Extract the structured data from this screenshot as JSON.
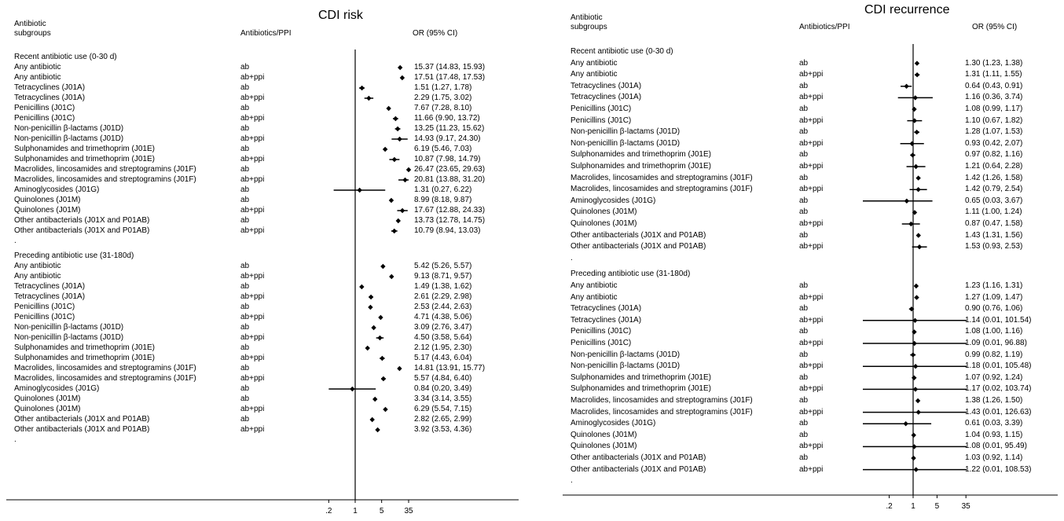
{
  "headers": {
    "subgroup_label": [
      "Antibiotic",
      "subgroups"
    ],
    "exposure_label": "Antibiotics/PPI",
    "or_label": "OR (95% CI)"
  },
  "chart_data": [
    {
      "type": "forest",
      "title": "CDI risk",
      "x_scale": "log",
      "reference_line": 1,
      "x_ticks": [
        {
          "value": 0.2,
          "label": ".2"
        },
        {
          "value": 1,
          "label": "1"
        },
        {
          "value": 5,
          "label": "5"
        },
        {
          "value": 35,
          "label": "35"
        }
      ],
      "groups": [
        {
          "label": "Recent antibiotic use (0-30 d)",
          "rows": [
            {
              "label": "Any antibiotic",
              "exposure": "ab",
              "or": 15.37,
              "lo": 14.83,
              "hi": 15.93,
              "text": "15.37 (14.83, 15.93)"
            },
            {
              "label": "Any antibiotic",
              "exposure": "ab+ppi",
              "or": 17.51,
              "lo": 17.48,
              "hi": 17.53,
              "text": "17.51 (17.48, 17.53)"
            },
            {
              "label": "Tetracyclines (J01A)",
              "exposure": "ab",
              "or": 1.51,
              "lo": 1.27,
              "hi": 1.78,
              "text": "1.51 (1.27, 1.78)"
            },
            {
              "label": "Tetracyclines (J01A)",
              "exposure": "ab+ppi",
              "or": 2.29,
              "lo": 1.75,
              "hi": 3.02,
              "text": "2.29 (1.75, 3.02)"
            },
            {
              "label": "Penicillins (J01C)",
              "exposure": "ab",
              "or": 7.67,
              "lo": 7.28,
              "hi": 8.1,
              "text": "7.67 (7.28, 8.10)"
            },
            {
              "label": "Penicillins (J01C)",
              "exposure": "ab+ppi",
              "or": 11.66,
              "lo": 9.9,
              "hi": 13.72,
              "text": "11.66 (9.90, 13.72)"
            },
            {
              "label": "Non-penicillin β-lactams (J01D)",
              "exposure": "ab",
              "or": 13.25,
              "lo": 11.23,
              "hi": 15.62,
              "text": "13.25 (11.23, 15.62)"
            },
            {
              "label": "Non-penicillin β-lactams (J01D)",
              "exposure": "ab+ppi",
              "or": 14.93,
              "lo": 9.17,
              "hi": 24.3,
              "text": "14.93 (9.17, 24.30)"
            },
            {
              "label": "Sulphonamides and trimethoprim  (J01E)",
              "exposure": "ab",
              "or": 6.19,
              "lo": 5.46,
              "hi": 7.03,
              "text": "6.19 (5.46, 7.03)"
            },
            {
              "label": "Sulphonamides and trimethoprim  (J01E)",
              "exposure": "ab+ppi",
              "or": 10.87,
              "lo": 7.98,
              "hi": 14.79,
              "text": "10.87 (7.98, 14.79)"
            },
            {
              "label": "Macrolides, lincosamides and streptogramins (J01F)",
              "exposure": "ab",
              "or": 26.47,
              "lo": 23.65,
              "hi": 29.63,
              "text": "26.47 (23.65, 29.63)"
            },
            {
              "label": "Macrolides, lincosamides and streptogramins (J01F)",
              "exposure": "ab+ppi",
              "or": 20.81,
              "lo": 13.88,
              "hi": 31.2,
              "text": "20.81 (13.88, 31.20)"
            },
            {
              "label": "Aminoglycosides (J01G)",
              "exposure": "ab",
              "or": 1.31,
              "lo": 0.27,
              "hi": 6.22,
              "text": "1.31 (0.27, 6.22)"
            },
            {
              "label": "Quinolones (J01M)",
              "exposure": "ab",
              "or": 8.99,
              "lo": 8.18,
              "hi": 9.87,
              "text": "8.99 (8.18, 9.87)"
            },
            {
              "label": "Quinolones (J01M)",
              "exposure": "ab+ppi",
              "or": 17.67,
              "lo": 12.88,
              "hi": 24.33,
              "text": "17.67 (12.88, 24.33)"
            },
            {
              "label": "Other antibacterials (J01X and P01AB)",
              "exposure": "ab",
              "or": 13.73,
              "lo": 12.78,
              "hi": 14.75,
              "text": "13.73 (12.78, 14.75)"
            },
            {
              "label": "Other antibacterials (J01X and P01AB)",
              "exposure": "ab+ppi",
              "or": 10.79,
              "lo": 8.94,
              "hi": 13.03,
              "text": "10.79 (8.94, 13.03)"
            }
          ]
        },
        {
          "label": "Preceding antibiotic use (31-180d)",
          "rows": [
            {
              "label": "Any antibiotic",
              "exposure": "ab",
              "or": 5.42,
              "lo": 5.26,
              "hi": 5.57,
              "text": "5.42 (5.26, 5.57)"
            },
            {
              "label": "Any antibiotic",
              "exposure": "ab+ppi",
              "or": 9.13,
              "lo": 8.71,
              "hi": 9.57,
              "text": "9.13 (8.71, 9.57)"
            },
            {
              "label": "Tetracyclines (J01A)",
              "exposure": "ab",
              "or": 1.49,
              "lo": 1.38,
              "hi": 1.62,
              "text": "1.49 (1.38, 1.62)"
            },
            {
              "label": "Tetracyclines (J01A)",
              "exposure": "ab+ppi",
              "or": 2.61,
              "lo": 2.29,
              "hi": 2.98,
              "text": "2.61 (2.29, 2.98)"
            },
            {
              "label": "Penicillins (J01C)",
              "exposure": "ab",
              "or": 2.53,
              "lo": 2.44,
              "hi": 2.63,
              "text": "2.53 (2.44, 2.63)"
            },
            {
              "label": "Penicillins (J01C)",
              "exposure": "ab+ppi",
              "or": 4.71,
              "lo": 4.38,
              "hi": 5.06,
              "text": "4.71 (4.38, 5.06)"
            },
            {
              "label": "Non-penicillin β-lactams (J01D)",
              "exposure": "ab",
              "or": 3.09,
              "lo": 2.76,
              "hi": 3.47,
              "text": "3.09 (2.76, 3.47)"
            },
            {
              "label": "Non-penicillin β-lactams (J01D)",
              "exposure": "ab+ppi",
              "or": 4.5,
              "lo": 3.58,
              "hi": 5.64,
              "text": "4.50 (3.58, 5.64)"
            },
            {
              "label": "Sulphonamides and trimethoprim  (J01E)",
              "exposure": "ab",
              "or": 2.12,
              "lo": 1.95,
              "hi": 2.3,
              "text": "2.12 (1.95, 2.30)"
            },
            {
              "label": "Sulphonamides and trimethoprim  (J01E)",
              "exposure": "ab+ppi",
              "or": 5.17,
              "lo": 4.43,
              "hi": 6.04,
              "text": "5.17 (4.43, 6.04)"
            },
            {
              "label": "Macrolides, lincosamides and streptogramins (J01F)",
              "exposure": "ab",
              "or": 14.81,
              "lo": 13.91,
              "hi": 15.77,
              "text": "14.81 (13.91, 15.77)"
            },
            {
              "label": "Macrolides, lincosamides and streptogramins (J01F)",
              "exposure": "ab+ppi",
              "or": 5.57,
              "lo": 4.84,
              "hi": 6.4,
              "text": "5.57 (4.84, 6.40)"
            },
            {
              "label": "Aminoglycosides (J01G)",
              "exposure": "ab",
              "or": 0.84,
              "lo": 0.2,
              "hi": 3.49,
              "text": "0.84 (0.20, 3.49)"
            },
            {
              "label": "Quinolones (J01M)",
              "exposure": "ab",
              "or": 3.34,
              "lo": 3.14,
              "hi": 3.55,
              "text": "3.34 (3.14, 3.55)"
            },
            {
              "label": "Quinolones (J01M)",
              "exposure": "ab+ppi",
              "or": 6.29,
              "lo": 5.54,
              "hi": 7.15,
              "text": "6.29 (5.54, 7.15)"
            },
            {
              "label": "Other antibacterials (J01X and P01AB)",
              "exposure": "ab",
              "or": 2.82,
              "lo": 2.65,
              "hi": 2.99,
              "text": "2.82 (2.65, 2.99)"
            },
            {
              "label": "Other antibacterials (J01X and P01AB)",
              "exposure": "ab+ppi",
              "or": 3.92,
              "lo": 3.53,
              "hi": 4.36,
              "text": "3.92 (3.53, 4.36)"
            }
          ]
        }
      ]
    },
    {
      "type": "forest",
      "title": "CDI recurrence",
      "x_scale": "log",
      "reference_line": 1,
      "x_ticks": [
        {
          "value": 0.2,
          "label": ".2"
        },
        {
          "value": 1,
          "label": "1"
        },
        {
          "value": 5,
          "label": "5"
        },
        {
          "value": 35,
          "label": "35"
        }
      ],
      "groups": [
        {
          "label": "Recent antibiotic use (0-30 d)",
          "rows": [
            {
              "label": "Any antibiotic",
              "exposure": "ab",
              "or": 1.3,
              "lo": 1.23,
              "hi": 1.38,
              "text": "1.30 (1.23, 1.38)"
            },
            {
              "label": "Any antibiotic",
              "exposure": "ab+ppi",
              "or": 1.31,
              "lo": 1.11,
              "hi": 1.55,
              "text": "1.31 (1.11, 1.55)"
            },
            {
              "label": "Tetracyclines (J01A)",
              "exposure": "ab",
              "or": 0.64,
              "lo": 0.43,
              "hi": 0.91,
              "text": "0.64 (0.43, 0.91)"
            },
            {
              "label": "Tetracyclines (J01A)",
              "exposure": "ab+ppi",
              "or": 1.16,
              "lo": 0.36,
              "hi": 3.74,
              "text": "1.16 (0.36, 3.74)"
            },
            {
              "label": "Penicillins (J01C)",
              "exposure": "ab",
              "or": 1.08,
              "lo": 0.99,
              "hi": 1.17,
              "text": "1.08 (0.99, 1.17)"
            },
            {
              "label": "Penicillins (J01C)",
              "exposure": "ab+ppi",
              "or": 1.1,
              "lo": 0.67,
              "hi": 1.82,
              "text": "1.10 (0.67, 1.82)"
            },
            {
              "label": "Non-penicillin β-lactams (J01D)",
              "exposure": "ab",
              "or": 1.28,
              "lo": 1.07,
              "hi": 1.53,
              "text": "1.28 (1.07, 1.53)"
            },
            {
              "label": "Non-penicillin β-lactams (J01D)",
              "exposure": "ab+ppi",
              "or": 0.93,
              "lo": 0.42,
              "hi": 2.07,
              "text": "0.93 (0.42, 2.07)"
            },
            {
              "label": "Sulphonamides and trimethoprim  (J01E)",
              "exposure": "ab",
              "or": 0.97,
              "lo": 0.82,
              "hi": 1.16,
              "text": "0.97 (0.82, 1.16)"
            },
            {
              "label": "Sulphonamides and trimethoprim  (J01E)",
              "exposure": "ab+ppi",
              "or": 1.21,
              "lo": 0.64,
              "hi": 2.28,
              "text": "1.21 (0.64, 2.28)"
            },
            {
              "label": "Macrolides, lincosamides and streptogramins (J01F)",
              "exposure": "ab",
              "or": 1.42,
              "lo": 1.26,
              "hi": 1.58,
              "text": "1.42 (1.26, 1.58)"
            },
            {
              "label": "Macrolides, lincosamides and streptogramins (J01F)",
              "exposure": "ab+ppi",
              "or": 1.42,
              "lo": 0.79,
              "hi": 2.54,
              "text": "1.42 (0.79, 2.54)"
            },
            {
              "label": "Aminoglycosides (J01G)",
              "exposure": "ab",
              "or": 0.65,
              "lo": 0.03,
              "hi": 3.67,
              "text": "0.65 (0.03, 3.67)"
            },
            {
              "label": "Quinolones (J01M)",
              "exposure": "ab",
              "or": 1.11,
              "lo": 1.0,
              "hi": 1.24,
              "text": "1.11 (1.00, 1.24)"
            },
            {
              "label": "Quinolones (J01M)",
              "exposure": "ab+ppi",
              "or": 0.87,
              "lo": 0.47,
              "hi": 1.58,
              "text": "0.87 (0.47, 1.58)"
            },
            {
              "label": "Other antibacterials (J01X and P01AB)",
              "exposure": "ab",
              "or": 1.43,
              "lo": 1.31,
              "hi": 1.56,
              "text": "1.43 (1.31, 1.56)"
            },
            {
              "label": "Other antibacterials (J01X and P01AB)",
              "exposure": "ab+ppi",
              "or": 1.53,
              "lo": 0.93,
              "hi": 2.53,
              "text": "1.53 (0.93, 2.53)"
            }
          ]
        },
        {
          "label": "Preceding antibiotic use (31-180d)",
          "rows": [
            {
              "label": "Any antibiotic",
              "exposure": "ab",
              "or": 1.23,
              "lo": 1.16,
              "hi": 1.31,
              "text": "1.23 (1.16, 1.31)"
            },
            {
              "label": "Any antibiotic",
              "exposure": "ab+ppi",
              "or": 1.27,
              "lo": 1.09,
              "hi": 1.47,
              "text": "1.27 (1.09, 1.47)"
            },
            {
              "label": "Tetracyclines (J01A)",
              "exposure": "ab",
              "or": 0.9,
              "lo": 0.76,
              "hi": 1.06,
              "text": "0.90 (0.76, 1.06)"
            },
            {
              "label": "Tetracyclines (J01A)",
              "exposure": "ab+ppi",
              "or": 1.14,
              "lo": 0.01,
              "hi": 101.54,
              "text": "1.14 (0.01, 101.54)"
            },
            {
              "label": "Penicillins (J01C)",
              "exposure": "ab",
              "or": 1.08,
              "lo": 1.0,
              "hi": 1.16,
              "text": "1.08 (1.00, 1.16)"
            },
            {
              "label": "Penicillins (J01C)",
              "exposure": "ab+ppi",
              "or": 1.09,
              "lo": 0.01,
              "hi": 96.88,
              "text": "1.09 (0.01, 96.88)"
            },
            {
              "label": "Non-penicillin β-lactams (J01D)",
              "exposure": "ab",
              "or": 0.99,
              "lo": 0.82,
              "hi": 1.19,
              "text": "0.99 (0.82, 1.19)"
            },
            {
              "label": "Non-penicillin β-lactams (J01D)",
              "exposure": "ab+ppi",
              "or": 1.18,
              "lo": 0.01,
              "hi": 105.48,
              "text": "1.18 (0.01, 105.48)"
            },
            {
              "label": "Sulphonamides and trimethoprim  (J01E)",
              "exposure": "ab",
              "or": 1.07,
              "lo": 0.92,
              "hi": 1.24,
              "text": "1.07 (0.92, 1.24)"
            },
            {
              "label": "Sulphonamides and trimethoprim  (J01E)",
              "exposure": "ab+ppi",
              "or": 1.17,
              "lo": 0.02,
              "hi": 103.74,
              "text": "1.17 (0.02, 103.74)"
            },
            {
              "label": "Macrolides, lincosamides and streptogramins (J01F)",
              "exposure": "ab",
              "or": 1.38,
              "lo": 1.26,
              "hi": 1.5,
              "text": "1.38 (1.26, 1.50)"
            },
            {
              "label": "Macrolides, lincosamides and streptogramins (J01F)",
              "exposure": "ab+ppi",
              "or": 1.43,
              "lo": 0.01,
              "hi": 126.63,
              "text": "1.43 (0.01, 126.63)"
            },
            {
              "label": "Aminoglycosides (J01G)",
              "exposure": "ab",
              "or": 0.61,
              "lo": 0.03,
              "hi": 3.39,
              "text": "0.61 (0.03, 3.39)"
            },
            {
              "label": "Quinolones (J01M)",
              "exposure": "ab",
              "or": 1.04,
              "lo": 0.93,
              "hi": 1.15,
              "text": "1.04 (0.93, 1.15)"
            },
            {
              "label": "Quinolones (J01M)",
              "exposure": "ab+ppi",
              "or": 1.08,
              "lo": 0.01,
              "hi": 95.49,
              "text": "1.08 (0.01, 95.49)"
            },
            {
              "label": "Other antibacterials (J01X and P01AB)",
              "exposure": "ab",
              "or": 1.03,
              "lo": 0.92,
              "hi": 1.14,
              "text": "1.03 (0.92, 1.14)"
            },
            {
              "label": "Other antibacterials (J01X and P01AB)",
              "exposure": "ab+ppi",
              "or": 1.22,
              "lo": 0.01,
              "hi": 108.53,
              "text": "1.22 (0.01, 108.53)"
            }
          ]
        }
      ]
    }
  ]
}
